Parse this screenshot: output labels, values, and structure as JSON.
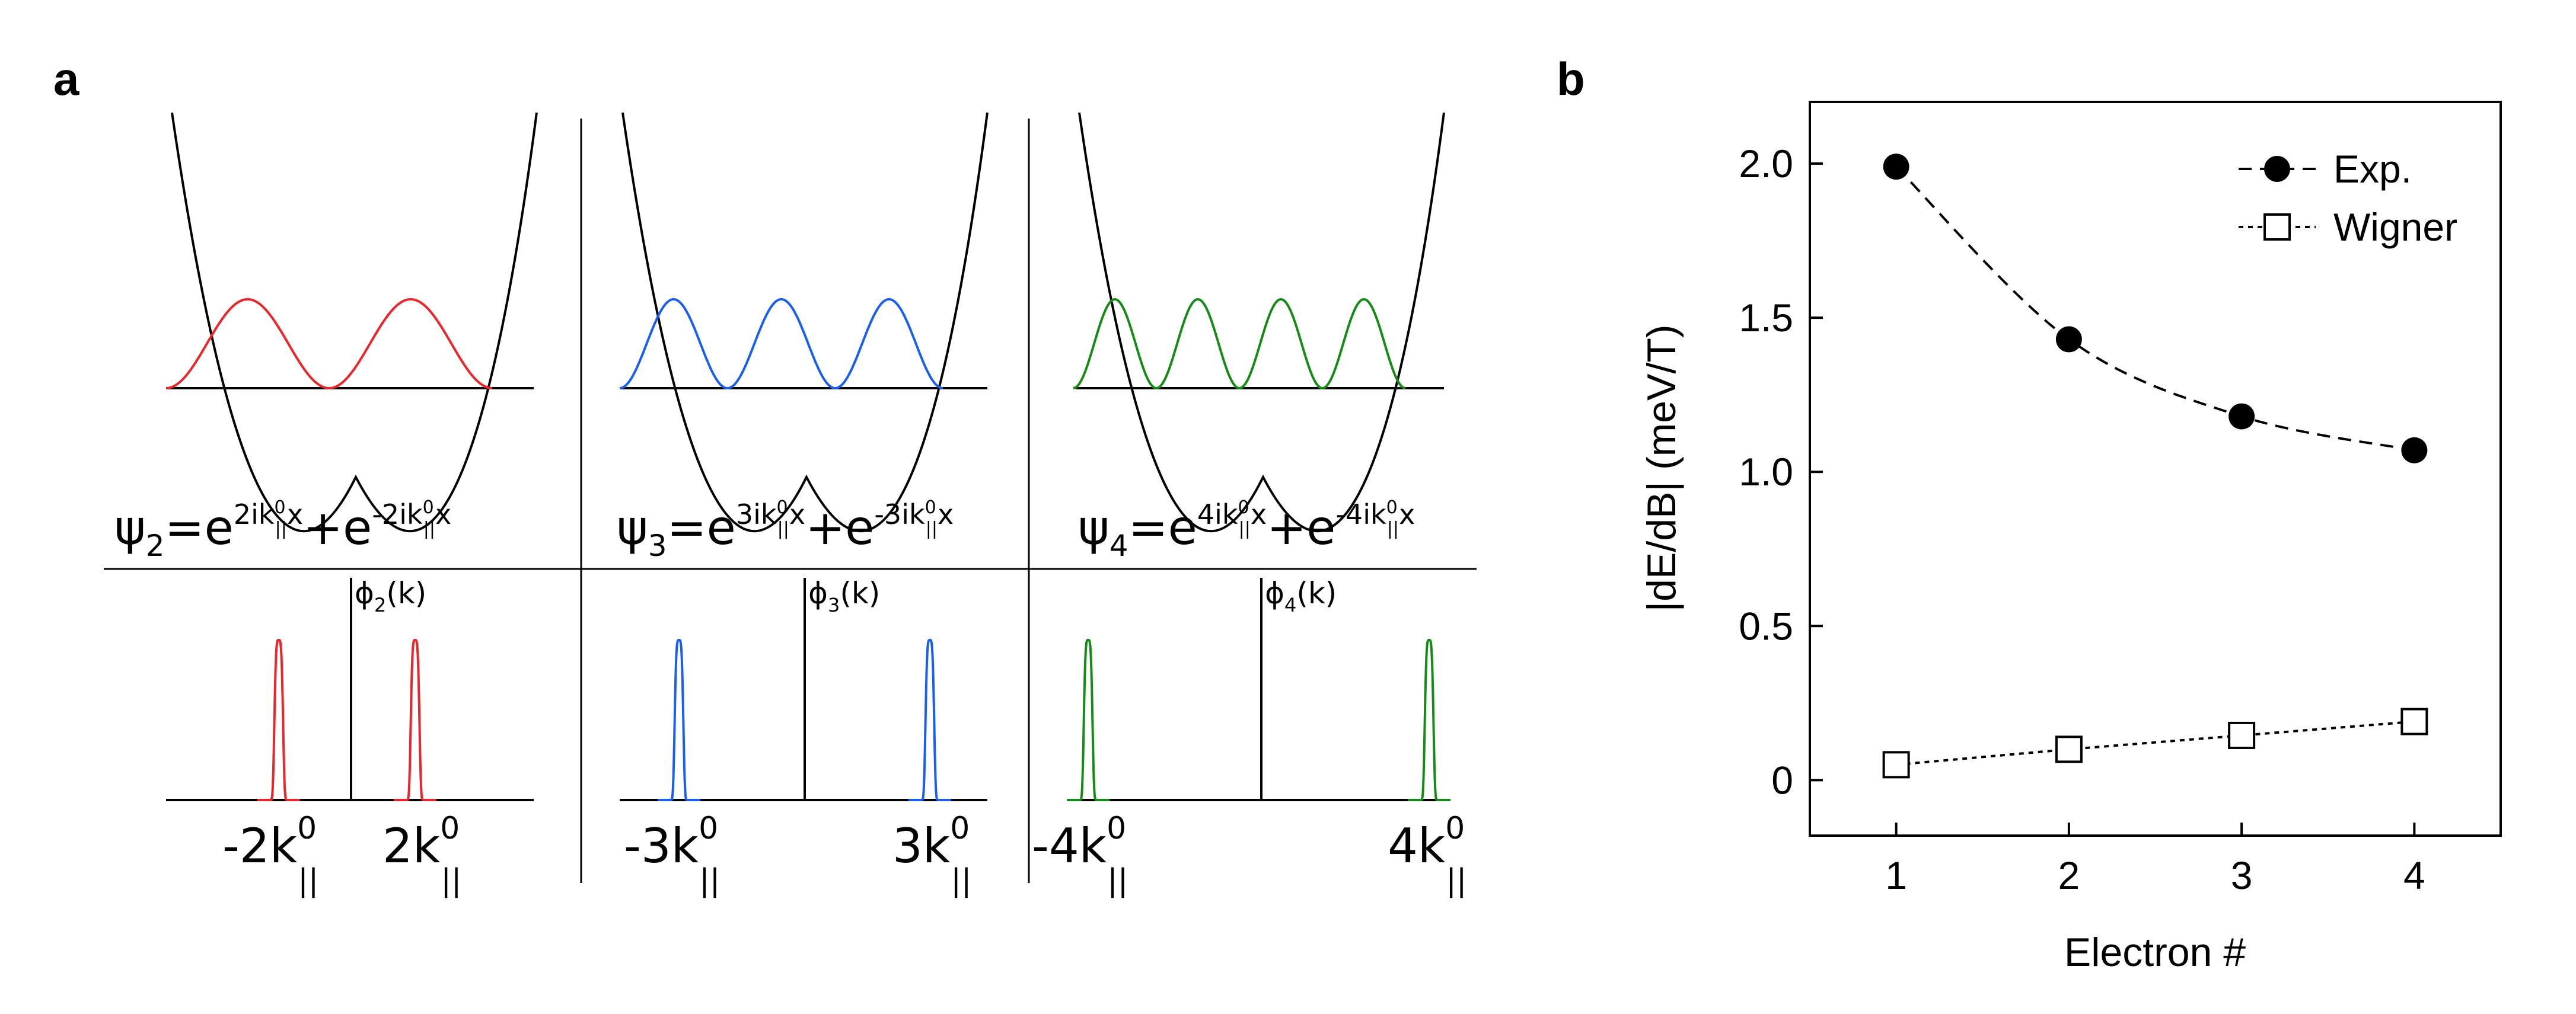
{
  "panel_a": {
    "label": "a",
    "columns": [
      {
        "n": 2,
        "color": "#e8262b",
        "psi_name": "ψ",
        "psi_sub": "2",
        "eq": "=e",
        "exp1": "2ik",
        "exp1_sup": "0",
        "exp1_sub": "||",
        "exp1_tail": "x",
        "plus": "+e",
        "exp2": "-2ik",
        "exp2_sup": "0",
        "exp2_sub": "||",
        "exp2_tail": "x",
        "phi_name": "ϕ",
        "phi_sub": "2",
        "phi_arg": "(k)",
        "k_left": "-2k",
        "k_right": "2k",
        "k_sup": "0",
        "k_sub": "||"
      },
      {
        "n": 3,
        "color": "#1a5ef0",
        "psi_name": "ψ",
        "psi_sub": "3",
        "eq": "=e",
        "exp1": "3ik",
        "exp1_sup": "0",
        "exp1_sub": "||",
        "exp1_tail": "x",
        "plus": "+e",
        "exp2": "-3ik",
        "exp2_sup": "0",
        "exp2_sub": "||",
        "exp2_tail": "x",
        "phi_name": "ϕ",
        "phi_sub": "3",
        "phi_arg": "(k)",
        "k_left": "-3k",
        "k_right": "3k",
        "k_sup": "0",
        "k_sub": "||"
      },
      {
        "n": 4,
        "color": "#168a16",
        "psi_name": "ψ",
        "psi_sub": "4",
        "eq": "=e",
        "exp1": "4ik",
        "exp1_sup": "0",
        "exp1_sub": "||",
        "exp1_tail": "x",
        "plus": "+e",
        "exp2": "-4ik",
        "exp2_sup": "0",
        "exp2_sub": "||",
        "exp2_tail": "x",
        "phi_name": "ϕ",
        "phi_sub": "4",
        "phi_arg": "(k)",
        "k_left": "-4k",
        "k_right": "4k",
        "k_sup": "0",
        "k_sub": "||"
      }
    ]
  },
  "chart_data": {
    "panel_label": "b",
    "type": "line",
    "xlabel": "Electron #",
    "ylabel": "|dE/dB| (meV/T)",
    "xlim": [
      0.5,
      4.5
    ],
    "ylim": [
      -0.18,
      2.2
    ],
    "xticks": [
      1,
      2,
      3,
      4
    ],
    "yticks": [
      0,
      0.5,
      1.0,
      1.5,
      2.0
    ],
    "ytick_labels": [
      "0",
      "0.5",
      "1.0",
      "1.5",
      "2.0"
    ],
    "legend_position": "top-right",
    "series": [
      {
        "name": "Exp.",
        "marker": "filled-circle",
        "line": "dashed",
        "x": [
          1,
          2,
          3,
          4
        ],
        "y": [
          1.99,
          1.43,
          1.18,
          1.07
        ]
      },
      {
        "name": "Wigner",
        "marker": "open-square",
        "line": "dotted",
        "x": [
          1,
          2,
          3,
          4
        ],
        "y": [
          0.05,
          0.1,
          0.145,
          0.19
        ]
      }
    ]
  }
}
